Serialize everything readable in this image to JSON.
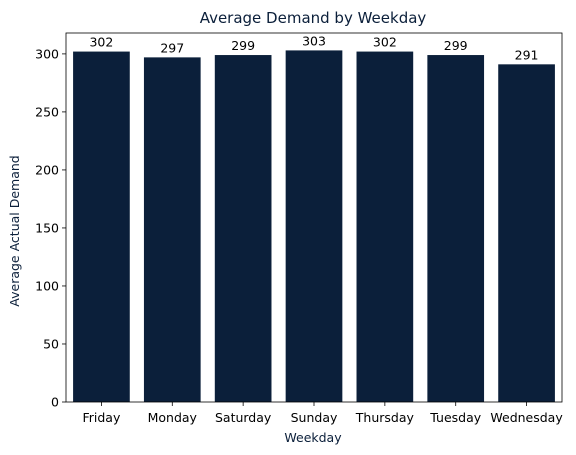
{
  "chart_data": {
    "type": "bar",
    "title": "Average Demand by Weekday",
    "xlabel": "Weekday",
    "ylabel": "Average Actual Demand",
    "categories": [
      "Friday",
      "Monday",
      "Saturday",
      "Sunday",
      "Thursday",
      "Tuesday",
      "Wednesday"
    ],
    "values": [
      302,
      297,
      299,
      303,
      302,
      299,
      291
    ],
    "data_labels": [
      "302",
      "297",
      "299",
      "303",
      "302",
      "299",
      "291"
    ],
    "yticks": [
      0,
      50,
      100,
      150,
      200,
      250,
      300
    ],
    "ylim": [
      0,
      318
    ],
    "grid": false,
    "legend": "none"
  },
  "colors": {
    "bar": "#0b1f3a",
    "title_text": "#0b1f3a",
    "axis_label_text": "#0b1f3a",
    "axis_line": "#000000"
  }
}
